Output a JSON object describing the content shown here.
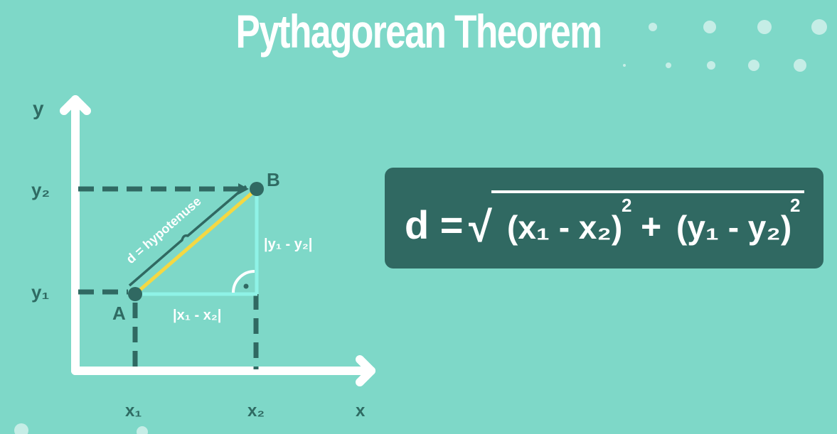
{
  "title": "Pythagorean Theorem",
  "diagram": {
    "y_axis_label": "y",
    "x_axis_label": "x",
    "y2_label": "y₂",
    "y1_label": "y₁",
    "x1_label": "x₁",
    "x2_label": "x₂",
    "point_a_label": "A",
    "point_b_label": "B",
    "hypotenuse_label": "d = hypotenuse",
    "vertical_leg_label": "|y₁ - y₂|",
    "horizontal_leg_label": "|x₁ - x₂|"
  },
  "formula": {
    "lhs": "d =",
    "radical": "√",
    "term1": "(x₁ - x₂)",
    "exp1": "2",
    "plus": "+",
    "term2": "(y₁ - y₂)",
    "exp2": "2"
  },
  "colors": {
    "background": "#7ed8c8",
    "dark_teal": "#306962",
    "hypotenuse": "#f5d842",
    "leg_cyan": "#8ff2e6",
    "white": "#ffffff"
  }
}
